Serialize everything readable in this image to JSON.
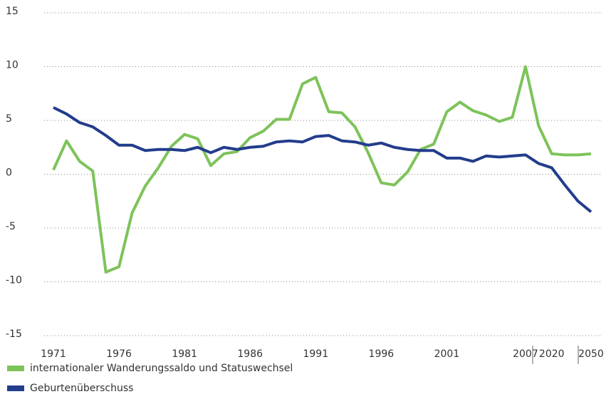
{
  "chart_data": {
    "type": "line",
    "categories": [
      "1971",
      null,
      null,
      null,
      null,
      "1976",
      null,
      null,
      null,
      null,
      "1981",
      null,
      null,
      null,
      null,
      "1986",
      null,
      null,
      null,
      null,
      "1991",
      null,
      null,
      null,
      null,
      "1996",
      null,
      null,
      null,
      null,
      "2001",
      null,
      null,
      null,
      null,
      null,
      "2007",
      null,
      "2020",
      null,
      null,
      "2050"
    ],
    "series": [
      {
        "name": "internationaler Wanderungssaldo und Statuswechsel",
        "color": "#7dc35a",
        "values": [
          0.4,
          3.1,
          1.2,
          0.3,
          -9.1,
          -8.6,
          -3.6,
          -1.1,
          0.6,
          2.6,
          3.7,
          3.3,
          0.8,
          1.9,
          2.1,
          3.4,
          4.0,
          5.1,
          5.1,
          8.4,
          9.0,
          5.8,
          5.7,
          4.4,
          2.0,
          -0.8,
          -1.0,
          0.2,
          2.3,
          2.8,
          5.8,
          6.7,
          5.9,
          5.5,
          4.9,
          5.3,
          10.0,
          4.5,
          1.9,
          1.8,
          1.8,
          1.9
        ]
      },
      {
        "name": "Geburtenüberschuss",
        "color": "#233c8c",
        "values": [
          6.2,
          5.6,
          4.8,
          4.4,
          3.6,
          2.7,
          2.7,
          2.2,
          2.3,
          2.3,
          2.2,
          2.5,
          2.0,
          2.5,
          2.3,
          2.5,
          2.6,
          3.0,
          3.1,
          3.0,
          3.5,
          3.6,
          3.1,
          3.0,
          2.7,
          2.9,
          2.5,
          2.3,
          2.2,
          2.2,
          1.5,
          1.5,
          1.2,
          1.7,
          1.6,
          1.7,
          1.8,
          1.0,
          0.6,
          -1.0,
          -2.5,
          -3.5
        ]
      }
    ],
    "ylim": [
      -15,
      15
    ],
    "yticks": [
      -15,
      -10,
      -5,
      0,
      5,
      10,
      15
    ],
    "grid": true
  }
}
